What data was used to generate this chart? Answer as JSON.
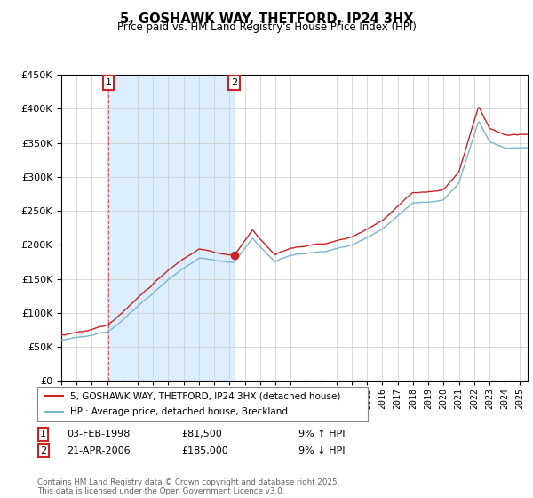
{
  "title": "5, GOSHAWK WAY, THETFORD, IP24 3HX",
  "subtitle": "Price paid vs. HM Land Registry's House Price Index (HPI)",
  "legend_line1": "5, GOSHAWK WAY, THETFORD, IP24 3HX (detached house)",
  "legend_line2": "HPI: Average price, detached house, Breckland",
  "annotation1_date": "03-FEB-1998",
  "annotation1_price": "£81,500",
  "annotation1_hpi": "9% ↑ HPI",
  "annotation2_date": "21-APR-2006",
  "annotation2_price": "£185,000",
  "annotation2_hpi": "9% ↓ HPI",
  "footer": "Contains HM Land Registry data © Crown copyright and database right 2025.\nThis data is licensed under the Open Government Licence v3.0.",
  "sale1_year": 1998.09,
  "sale1_value": 81500,
  "sale2_year": 2006.31,
  "sale2_value": 185000,
  "hpi_color": "#7ab3d4",
  "price_color": "#cc2222",
  "shade_color": "#ddeeff",
  "background_color": "#ffffff",
  "grid_color": "#cccccc",
  "ylim_min": 0,
  "ylim_max": 450000,
  "xlim_min": 1995,
  "xlim_max": 2025.5
}
